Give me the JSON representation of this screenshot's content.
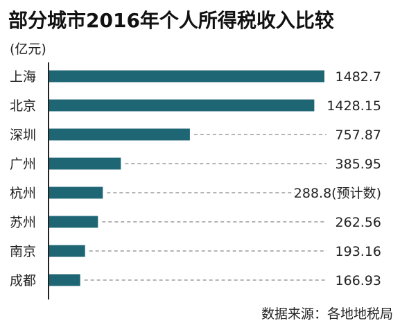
{
  "title": "部分城市2016年个人所得税收入比较",
  "unit": "(亿元)",
  "source": "数据来源：各地地税局",
  "colors": {
    "bar": "#1f6675",
    "axis": "#222222",
    "leader": "#888888",
    "text": "#222222"
  },
  "chart_data": {
    "type": "bar",
    "orientation": "horizontal",
    "title": "部分城市2016年个人所得税收入比较",
    "ylabel": "(亿元)",
    "xlim": [
      0,
      1482.7
    ],
    "grid": false,
    "categories": [
      "上海",
      "北京",
      "深圳",
      "广州",
      "杭州",
      "苏州",
      "南京",
      "成都"
    ],
    "values": [
      1482.7,
      1428.15,
      757.87,
      385.95,
      288.8,
      262.56,
      193.16,
      166.93
    ],
    "data_labels": [
      "1482.7",
      "1428.15",
      "757.87",
      "385.95",
      "288.8(预计数)",
      "262.56",
      "193.16",
      "166.93"
    ]
  }
}
